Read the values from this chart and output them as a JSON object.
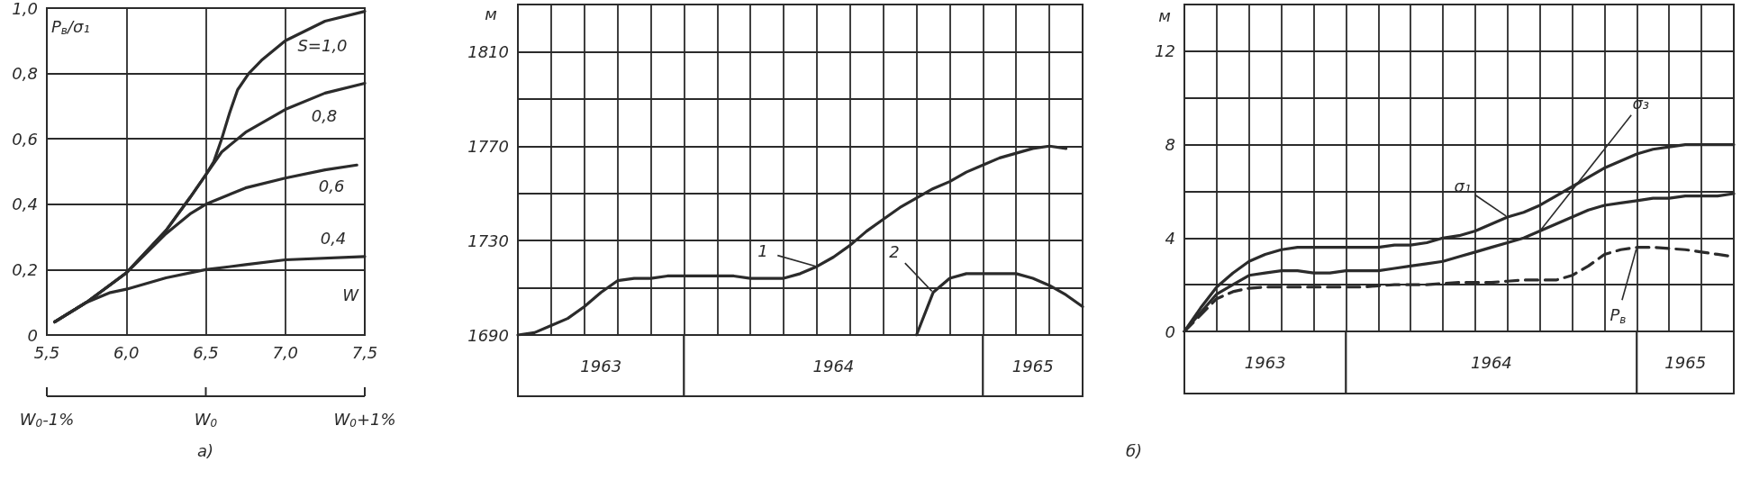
{
  "chart_data": [
    {
      "type": "line",
      "xlabel": "W",
      "ylabel": "P$_{в}$/σ₁",
      "grid": true,
      "marker": "none",
      "line_style": "solid",
      "xlim": [
        5.5,
        7.5
      ],
      "xticks": [
        {
          "value": 5.5,
          "label": "5,5"
        },
        {
          "value": 6.0,
          "label": "6,0"
        },
        {
          "value": 6.5,
          "label": "6,5"
        },
        {
          "value": 7.0,
          "label": "7,0"
        },
        {
          "value": 7.5,
          "label": "7,5"
        }
      ],
      "ylim": [
        0,
        1
      ],
      "yticks": [
        0,
        {
          "value": 0.2,
          "label": "0,2"
        },
        {
          "value": 0.4,
          "label": "0,4"
        },
        {
          "value": 0.6,
          "label": "0,6"
        },
        {
          "value": 0.8,
          "label": "0,8"
        },
        {
          "value": 1.0,
          "label": "1,0"
        }
      ],
      "series": [
        {
          "name": "S=1,0",
          "color": "#2b2b2b",
          "x": [
            5.55,
            5.75,
            6.0,
            6.25,
            6.4,
            6.5,
            6.55,
            6.6,
            6.65,
            6.7,
            6.77,
            6.85,
            7.0,
            7.25,
            7.5
          ],
          "values": [
            0.04,
            0.1,
            0.19,
            0.32,
            0.42,
            0.49,
            0.53,
            0.6,
            0.68,
            0.75,
            0.8,
            0.84,
            0.9,
            0.96,
            0.99
          ]
        },
        {
          "name": "0,8",
          "color": "#2b2b2b",
          "x": [
            5.55,
            5.75,
            6.0,
            6.25,
            6.4,
            6.5,
            6.6,
            6.75,
            7.0,
            7.25,
            7.5
          ],
          "values": [
            0.04,
            0.1,
            0.19,
            0.32,
            0.42,
            0.49,
            0.56,
            0.62,
            0.69,
            0.74,
            0.77
          ]
        },
        {
          "name": "0,6",
          "color": "#2b2b2b",
          "x": [
            5.55,
            5.75,
            6.0,
            6.25,
            6.4,
            6.5,
            6.75,
            7.0,
            7.25,
            7.45
          ],
          "values": [
            0.04,
            0.1,
            0.19,
            0.31,
            0.37,
            0.4,
            0.45,
            0.48,
            0.505,
            0.52
          ]
        },
        {
          "name": "0,4",
          "color": "#2b2b2b",
          "x": [
            5.55,
            5.75,
            5.9,
            6.0,
            6.25,
            6.5,
            6.75,
            7.0,
            7.5
          ],
          "values": [
            0.04,
            0.1,
            0.13,
            0.14,
            0.175,
            0.2,
            0.215,
            0.23,
            0.24
          ]
        }
      ],
      "annotations": [
        "W$_{0}$-1%",
        "W$_{0}$",
        "W$_{0}$+1%",
        "а)"
      ]
    },
    {
      "type": "line",
      "ylabel": "м",
      "grid": true,
      "marker": "none",
      "line_style": "solid",
      "tick_labels": "y",
      "categories": [
        null,
        null,
        null,
        null,
        null,
        null,
        null,
        null,
        null,
        null,
        null,
        null,
        null,
        null,
        null,
        null,
        null,
        null,
        null,
        null,
        null,
        null,
        null,
        null,
        null,
        null,
        null,
        null,
        null,
        null,
        null,
        null,
        null,
        null,
        null
      ],
      "ylim": [
        1690,
        1830
      ],
      "yticks": [
        1690,
        {
          "value": 1710,
          "label": null
        },
        1730,
        {
          "value": 1750,
          "label": null
        },
        1770,
        {
          "value": 1790,
          "label": null
        },
        1810
      ],
      "series": [
        {
          "name": "1",
          "color": "#2b2b2b",
          "values": [
            1690,
            1691,
            1694,
            1697,
            1702,
            1708,
            1713,
            1714,
            1714,
            1715,
            1715,
            1715,
            1715,
            1715,
            1714,
            1714,
            1714,
            1716,
            1719,
            1723,
            1728,
            1734,
            1739,
            1744,
            1748,
            1752,
            1755,
            1759,
            1762,
            1765,
            1767,
            1769,
            1770,
            1769,
            null
          ]
        },
        {
          "name": "2",
          "color": "#2b2b2b",
          "values": [
            null,
            null,
            null,
            null,
            null,
            null,
            null,
            null,
            null,
            null,
            null,
            null,
            null,
            null,
            null,
            null,
            null,
            null,
            null,
            null,
            null,
            null,
            null,
            null,
            1690,
            1708,
            1714,
            1716,
            1716,
            1716,
            1716,
            1714,
            1711,
            1707,
            1702
          ]
        }
      ],
      "annotations": [
        "1963",
        "1964",
        "1965"
      ]
    },
    {
      "type": "line",
      "ylabel": "м",
      "grid": true,
      "marker": "none",
      "line_style": "solid",
      "tick_labels": "y",
      "categories": [
        null,
        null,
        null,
        null,
        null,
        null,
        null,
        null,
        null,
        null,
        null,
        null,
        null,
        null,
        null,
        null,
        null,
        null,
        null,
        null,
        null,
        null,
        null,
        null,
        null,
        null,
        null,
        null,
        null,
        null,
        null,
        null,
        null,
        null,
        null
      ],
      "ylim": [
        0,
        14
      ],
      "yticks": [
        0,
        {
          "value": 2,
          "label": null
        },
        4,
        {
          "value": 6,
          "label": null
        },
        8,
        {
          "value": 10,
          "label": null
        },
        12
      ],
      "series": [
        {
          "name": "σ₁",
          "color": "#2b2b2b",
          "values": [
            0,
            1.0,
            1.9,
            2.5,
            3.0,
            3.3,
            3.5,
            3.6,
            3.6,
            3.6,
            3.6,
            3.6,
            3.6,
            3.7,
            3.7,
            3.8,
            4.0,
            4.1,
            4.3,
            4.6,
            4.9,
            5.1,
            5.4,
            5.8,
            6.2,
            6.6,
            7.0,
            7.3,
            7.6,
            7.8,
            7.9,
            8.0,
            8.0,
            8.0,
            8.0
          ]
        },
        {
          "name": "σ₃",
          "color": "#2b2b2b",
          "values": [
            0,
            0.8,
            1.6,
            2.0,
            2.4,
            2.5,
            2.6,
            2.6,
            2.5,
            2.5,
            2.6,
            2.6,
            2.6,
            2.7,
            2.8,
            2.9,
            3.0,
            3.2,
            3.4,
            3.6,
            3.8,
            4.0,
            4.3,
            4.6,
            4.9,
            5.2,
            5.4,
            5.5,
            5.6,
            5.7,
            5.7,
            5.8,
            5.8,
            5.8,
            5.9
          ]
        },
        {
          "name": "P$_{в}$",
          "color": "#2b2b2b",
          "line_style": "dashed",
          "values": [
            0,
            0.7,
            1.4,
            1.7,
            1.85,
            1.9,
            1.9,
            1.9,
            1.9,
            1.9,
            1.9,
            1.9,
            1.95,
            2.0,
            2.0,
            2.0,
            2.05,
            2.1,
            2.1,
            2.1,
            2.15,
            2.2,
            2.2,
            2.2,
            2.4,
            2.8,
            3.3,
            3.5,
            3.6,
            3.6,
            3.55,
            3.5,
            3.4,
            3.3,
            3.2
          ]
        }
      ],
      "annotations": [
        "1963",
        "1964",
        "1965",
        "б)"
      ]
    }
  ]
}
